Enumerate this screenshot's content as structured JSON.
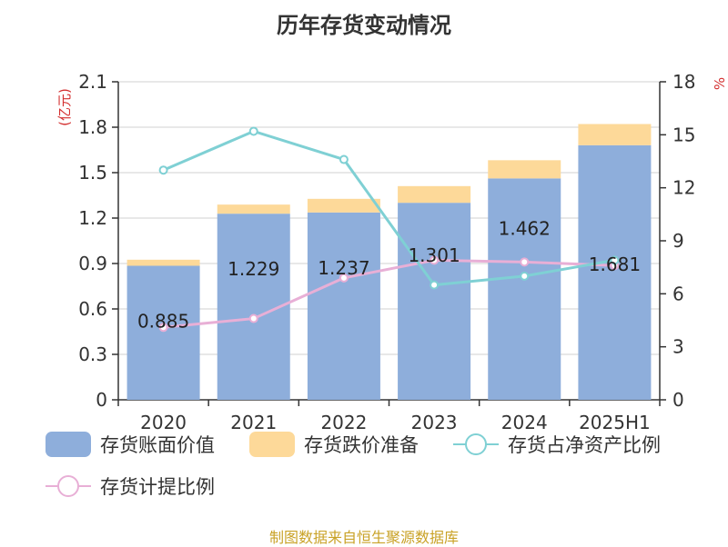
{
  "title": "历年存货变动情况",
  "source": "制图数据来自恒生聚源数据库",
  "chart_data": {
    "type": "bar",
    "categories": [
      "2020",
      "2021",
      "2022",
      "2023",
      "2024",
      "2025H1"
    ],
    "y_left": {
      "unit_label": "(亿元)",
      "min": 0,
      "max": 2.1,
      "ticks": [
        "0",
        "0.3",
        "0.6",
        "0.9",
        "1.2",
        "1.5",
        "1.8",
        "2.1"
      ]
    },
    "y_right": {
      "unit_label": "%",
      "min": 0,
      "max": 18,
      "ticks": [
        "0",
        "3",
        "6",
        "9",
        "12",
        "15",
        "18"
      ]
    },
    "series": [
      {
        "name": "存货账面价值",
        "kind": "bar-stacked",
        "axis": "left",
        "color": "#8eaedb",
        "values": [
          0.885,
          1.229,
          1.237,
          1.301,
          1.462,
          1.681
        ],
        "labels": [
          "0.885",
          "1.229",
          "1.237",
          "1.301",
          "1.462",
          "1.681"
        ]
      },
      {
        "name": "存货跌价准备",
        "kind": "bar-stacked",
        "axis": "left",
        "color": "#fdd999",
        "values": [
          0.04,
          0.06,
          0.09,
          0.11,
          0.12,
          0.14
        ]
      },
      {
        "name": "存货占净资产比例",
        "kind": "line",
        "axis": "right",
        "color": "#7fd0d4",
        "values": [
          13.0,
          15.2,
          13.6,
          6.5,
          7.0,
          7.9
        ]
      },
      {
        "name": "存货计提比例",
        "kind": "line",
        "axis": "right",
        "color": "#e8afd6",
        "values": [
          4.1,
          4.6,
          6.9,
          7.9,
          7.8,
          7.6
        ]
      }
    ],
    "grid": true,
    "legend_position": "bottom"
  }
}
